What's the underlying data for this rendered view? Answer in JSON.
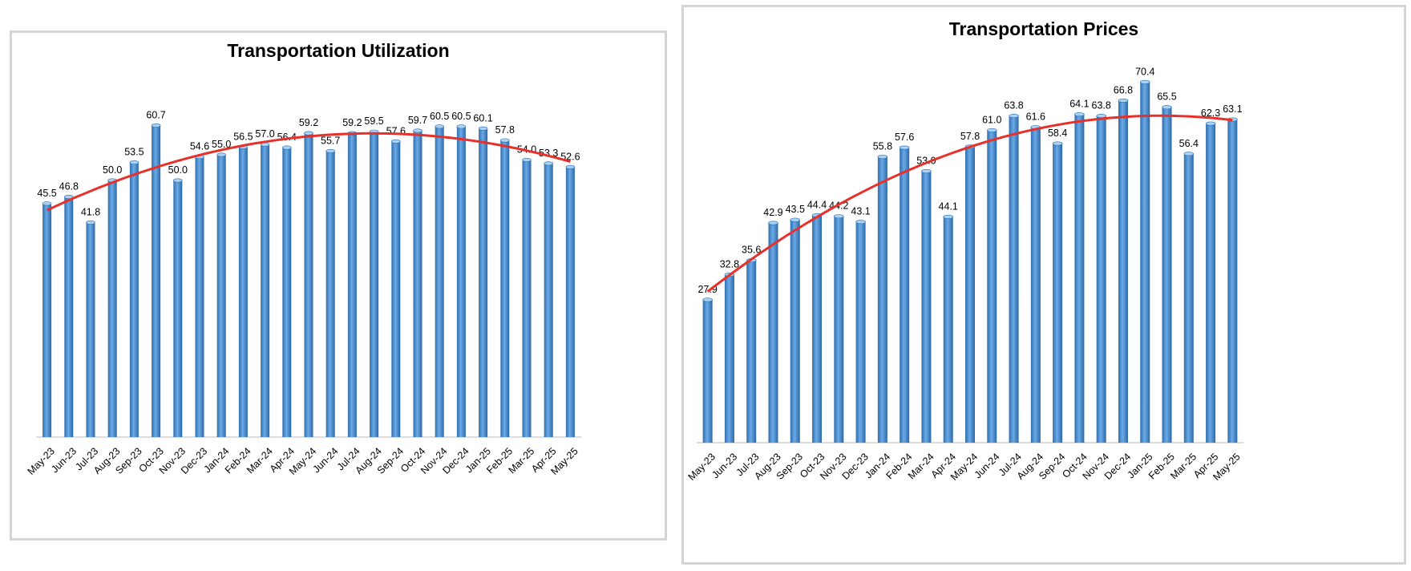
{
  "chart_data": [
    {
      "type": "bar",
      "title": "Transportation Utilization",
      "xlabel": "",
      "ylabel": "",
      "ylim": [
        0,
        70
      ],
      "grid": false,
      "trendline": "polynomial",
      "colors": {
        "bar": "#3f86c8",
        "trend": "#e8302a"
      },
      "categories": [
        "May-23",
        "Jun-23",
        "Jul-23",
        "Aug-23",
        "Sep-23",
        "Oct-23",
        "Nov-23",
        "Dec-23",
        "Jan-24",
        "Feb-24",
        "Mar-24",
        "Apr-24",
        "May-24",
        "Jun-24",
        "Jul-24",
        "Aug-24",
        "Sep-24",
        "Oct-24",
        "Nov-24",
        "Dec-24",
        "Jan-25",
        "Feb-25",
        "Mar-25",
        "Apr-25",
        "May-25"
      ],
      "values": [
        45.5,
        46.8,
        41.8,
        50.0,
        53.5,
        60.7,
        50.0,
        54.6,
        55.0,
        56.5,
        57.0,
        56.4,
        59.2,
        55.7,
        59.2,
        59.5,
        57.6,
        59.7,
        60.5,
        60.5,
        60.1,
        57.8,
        54.0,
        53.3,
        52.6
      ],
      "labels": [
        "45.5",
        "46.8",
        "41.8",
        "50.0",
        "53.5",
        "60.7",
        "50.0",
        "54.6",
        "55.0",
        "56.5",
        "57.0",
        "56.4",
        "59.2",
        "55.7",
        "59.2",
        "59.5",
        "57.6",
        "59.7",
        "60.5",
        "60.5",
        "60.1",
        "57.8",
        "54.0",
        "53.3",
        "52.6"
      ]
    },
    {
      "type": "bar",
      "title": "Transportation Prices",
      "xlabel": "",
      "ylabel": "",
      "ylim": [
        0,
        75
      ],
      "grid": false,
      "trendline": "polynomial",
      "colors": {
        "bar": "#3f86c8",
        "trend": "#e8302a"
      },
      "categories": [
        "May-23",
        "Jun-23",
        "Jul-23",
        "Aug-23",
        "Sep-23",
        "Oct-23",
        "Nov-23",
        "Dec-23",
        "Jan-24",
        "Feb-24",
        "Mar-24",
        "Apr-24",
        "May-24",
        "Jun-24",
        "Jul-24",
        "Aug-24",
        "Sep-24",
        "Oct-24",
        "Nov-24",
        "Dec-24",
        "Jan-25",
        "Feb-25",
        "Mar-25",
        "Apr-25",
        "May-25"
      ],
      "values": [
        27.9,
        32.8,
        35.6,
        42.9,
        43.5,
        44.4,
        44.2,
        43.1,
        55.8,
        57.6,
        53.0,
        44.1,
        57.8,
        61.0,
        63.8,
        61.6,
        58.4,
        64.1,
        63.8,
        66.8,
        70.4,
        65.5,
        56.4,
        62.3,
        63.1
      ],
      "labels": [
        "27.9",
        "32.8",
        "35.6",
        "42.9",
        "43.5",
        "44.4",
        "44.2",
        "43.1",
        "55.8",
        "57.6",
        "53.0",
        "44.1",
        "57.8",
        "61.0",
        "63.8",
        "61.6",
        "58.4",
        "64.1",
        "63.8",
        "66.8",
        "70.4",
        "65.5",
        "56.4",
        "62.3",
        "63.1"
      ]
    }
  ]
}
